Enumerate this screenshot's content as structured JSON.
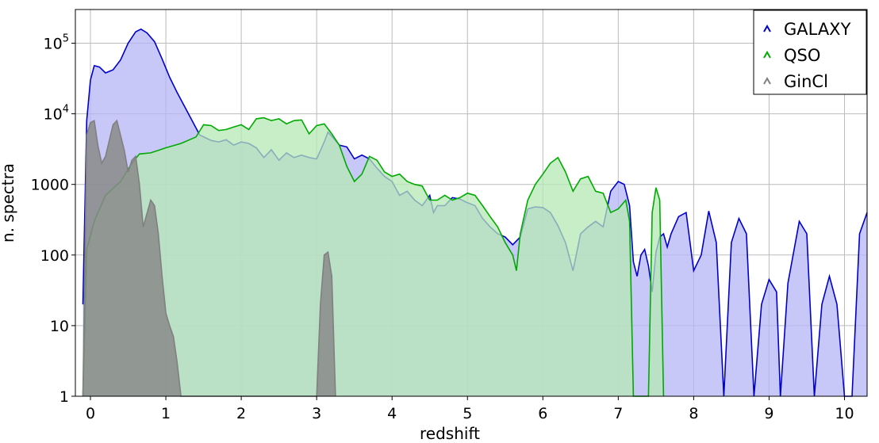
{
  "chart_data": {
    "type": "area",
    "xlabel": "redshift",
    "ylabel": "n. spectra",
    "xlim": [
      -0.2,
      10.3
    ],
    "ylim": [
      1,
      300000
    ],
    "yscale": "log",
    "grid": true,
    "legend_position": "top-right",
    "xticks": [
      0,
      1,
      2,
      3,
      4,
      5,
      6,
      7,
      8,
      9,
      10
    ],
    "xtick_labels": [
      "0",
      "1",
      "2",
      "3",
      "4",
      "5",
      "6",
      "7",
      "8",
      "9",
      "10"
    ],
    "yticks": [
      1,
      10,
      100,
      1000,
      10000,
      100000
    ],
    "ytick_labels": [
      {
        "base": "1",
        "exp": ""
      },
      {
        "base": "10",
        "exp": ""
      },
      {
        "base": "100",
        "exp": ""
      },
      {
        "base": "1000",
        "exp": ""
      },
      {
        "base": "10",
        "exp": "4"
      },
      {
        "base": "10",
        "exp": "5"
      }
    ],
    "series": [
      {
        "name": "GALAXY",
        "color": "#0000cc",
        "fill": "#b5b5f5",
        "points": [
          [
            -0.1,
            20
          ],
          [
            -0.05,
            8000
          ],
          [
            0.0,
            30000
          ],
          [
            0.05,
            48000
          ],
          [
            0.12,
            46000
          ],
          [
            0.2,
            38000
          ],
          [
            0.3,
            42000
          ],
          [
            0.4,
            58000
          ],
          [
            0.5,
            100000
          ],
          [
            0.6,
            145000
          ],
          [
            0.67,
            158000
          ],
          [
            0.75,
            140000
          ],
          [
            0.85,
            105000
          ],
          [
            0.95,
            60000
          ],
          [
            1.05,
            33000
          ],
          [
            1.15,
            20000
          ],
          [
            1.3,
            10000
          ],
          [
            1.45,
            5000
          ],
          [
            1.6,
            4200
          ],
          [
            1.7,
            4000
          ],
          [
            1.8,
            4300
          ],
          [
            1.9,
            3600
          ],
          [
            2.0,
            4000
          ],
          [
            2.1,
            3800
          ],
          [
            2.2,
            3300
          ],
          [
            2.3,
            2400
          ],
          [
            2.4,
            3100
          ],
          [
            2.5,
            2200
          ],
          [
            2.6,
            2800
          ],
          [
            2.7,
            2400
          ],
          [
            2.8,
            2600
          ],
          [
            2.9,
            2400
          ],
          [
            3.0,
            2300
          ],
          [
            3.1,
            4000
          ],
          [
            3.15,
            5500
          ],
          [
            3.2,
            4800
          ],
          [
            3.3,
            3600
          ],
          [
            3.4,
            3400
          ],
          [
            3.5,
            2300
          ],
          [
            3.6,
            2600
          ],
          [
            3.7,
            2300
          ],
          [
            3.8,
            1700
          ],
          [
            3.9,
            1300
          ],
          [
            4.0,
            1100
          ],
          [
            4.1,
            700
          ],
          [
            4.2,
            800
          ],
          [
            4.3,
            600
          ],
          [
            4.4,
            500
          ],
          [
            4.5,
            700
          ],
          [
            4.55,
            400
          ],
          [
            4.6,
            500
          ],
          [
            4.7,
            500
          ],
          [
            4.8,
            650
          ],
          [
            4.9,
            620
          ],
          [
            5.0,
            550
          ],
          [
            5.1,
            500
          ],
          [
            5.2,
            330
          ],
          [
            5.3,
            250
          ],
          [
            5.4,
            200
          ],
          [
            5.5,
            180
          ],
          [
            5.6,
            140
          ],
          [
            5.7,
            180
          ],
          [
            5.8,
            450
          ],
          [
            5.9,
            480
          ],
          [
            6.0,
            470
          ],
          [
            6.1,
            400
          ],
          [
            6.2,
            260
          ],
          [
            6.3,
            150
          ],
          [
            6.4,
            60
          ],
          [
            6.5,
            200
          ],
          [
            6.6,
            250
          ],
          [
            6.7,
            300
          ],
          [
            6.8,
            250
          ],
          [
            6.9,
            800
          ],
          [
            7.0,
            1100
          ],
          [
            7.08,
            1000
          ],
          [
            7.15,
            500
          ],
          [
            7.2,
            80
          ],
          [
            7.25,
            50
          ],
          [
            7.3,
            100
          ],
          [
            7.35,
            120
          ],
          [
            7.4,
            70
          ],
          [
            7.45,
            30
          ],
          [
            7.5,
            110
          ],
          [
            7.55,
            180
          ],
          [
            7.6,
            200
          ],
          [
            7.65,
            130
          ],
          [
            7.7,
            200
          ],
          [
            7.8,
            350
          ],
          [
            7.9,
            400
          ],
          [
            8.0,
            60
          ],
          [
            8.1,
            100
          ],
          [
            8.2,
            420
          ],
          [
            8.3,
            150
          ],
          [
            8.4,
            1
          ],
          [
            8.5,
            150
          ],
          [
            8.6,
            330
          ],
          [
            8.7,
            200
          ],
          [
            8.8,
            1
          ],
          [
            8.9,
            20
          ],
          [
            9.0,
            45
          ],
          [
            9.1,
            30
          ],
          [
            9.15,
            1
          ],
          [
            9.25,
            40
          ],
          [
            9.4,
            300
          ],
          [
            9.5,
            200
          ],
          [
            9.6,
            1
          ],
          [
            9.7,
            20
          ],
          [
            9.8,
            50
          ],
          [
            9.9,
            20
          ],
          [
            10.0,
            1
          ],
          [
            10.1,
            1
          ],
          [
            10.2,
            200
          ],
          [
            10.3,
            400
          ]
        ]
      },
      {
        "name": "QSO",
        "color": "#00aa00",
        "fill": "#b5e8b5",
        "points": [
          [
            -0.1,
            1
          ],
          [
            -0.05,
            120
          ],
          [
            0.05,
            300
          ],
          [
            0.2,
            700
          ],
          [
            0.4,
            1100
          ],
          [
            0.55,
            2000
          ],
          [
            0.65,
            2700
          ],
          [
            0.8,
            2800
          ],
          [
            1.0,
            3300
          ],
          [
            1.2,
            3800
          ],
          [
            1.4,
            4700
          ],
          [
            1.5,
            7000
          ],
          [
            1.6,
            6800
          ],
          [
            1.7,
            5800
          ],
          [
            1.8,
            6000
          ],
          [
            1.9,
            6500
          ],
          [
            2.0,
            7000
          ],
          [
            2.1,
            6000
          ],
          [
            2.2,
            8500
          ],
          [
            2.3,
            8800
          ],
          [
            2.4,
            8000
          ],
          [
            2.5,
            8500
          ],
          [
            2.6,
            7200
          ],
          [
            2.7,
            8000
          ],
          [
            2.8,
            8200
          ],
          [
            2.9,
            5200
          ],
          [
            3.0,
            6800
          ],
          [
            3.1,
            7200
          ],
          [
            3.2,
            5200
          ],
          [
            3.3,
            3600
          ],
          [
            3.4,
            1800
          ],
          [
            3.5,
            1100
          ],
          [
            3.6,
            1400
          ],
          [
            3.7,
            2500
          ],
          [
            3.8,
            2200
          ],
          [
            3.9,
            1500
          ],
          [
            4.0,
            1300
          ],
          [
            4.1,
            1400
          ],
          [
            4.2,
            1100
          ],
          [
            4.3,
            1000
          ],
          [
            4.4,
            950
          ],
          [
            4.5,
            600
          ],
          [
            4.6,
            600
          ],
          [
            4.7,
            700
          ],
          [
            4.8,
            600
          ],
          [
            4.9,
            650
          ],
          [
            5.0,
            750
          ],
          [
            5.1,
            700
          ],
          [
            5.2,
            500
          ],
          [
            5.3,
            350
          ],
          [
            5.4,
            250
          ],
          [
            5.5,
            150
          ],
          [
            5.6,
            100
          ],
          [
            5.65,
            60
          ],
          [
            5.7,
            200
          ],
          [
            5.8,
            600
          ],
          [
            5.9,
            1000
          ],
          [
            6.0,
            1400
          ],
          [
            6.1,
            2000
          ],
          [
            6.2,
            2400
          ],
          [
            6.3,
            1500
          ],
          [
            6.4,
            800
          ],
          [
            6.5,
            1200
          ],
          [
            6.6,
            1300
          ],
          [
            6.7,
            800
          ],
          [
            6.8,
            750
          ],
          [
            6.9,
            400
          ],
          [
            7.0,
            450
          ],
          [
            7.1,
            600
          ],
          [
            7.15,
            300
          ],
          [
            7.2,
            1
          ],
          [
            7.4,
            1
          ],
          [
            7.45,
            400
          ],
          [
            7.5,
            900
          ],
          [
            7.55,
            600
          ],
          [
            7.6,
            1
          ]
        ]
      },
      {
        "name": "GinCl",
        "color": "#808080",
        "fill": "#8a8a8a",
        "points": [
          [
            -0.1,
            1
          ],
          [
            -0.05,
            5000
          ],
          [
            0.0,
            7500
          ],
          [
            0.05,
            8000
          ],
          [
            0.1,
            3500
          ],
          [
            0.15,
            2000
          ],
          [
            0.2,
            2500
          ],
          [
            0.3,
            7000
          ],
          [
            0.35,
            8000
          ],
          [
            0.45,
            3000
          ],
          [
            0.5,
            1500
          ],
          [
            0.55,
            2200
          ],
          [
            0.6,
            2500
          ],
          [
            0.65,
            1000
          ],
          [
            0.7,
            250
          ],
          [
            0.8,
            600
          ],
          [
            0.85,
            500
          ],
          [
            0.9,
            200
          ],
          [
            0.95,
            50
          ],
          [
            1.0,
            15
          ],
          [
            1.05,
            10
          ],
          [
            1.1,
            7
          ],
          [
            1.15,
            3
          ],
          [
            1.2,
            1
          ],
          [
            3.0,
            1
          ],
          [
            3.05,
            20
          ],
          [
            3.1,
            100
          ],
          [
            3.15,
            110
          ],
          [
            3.2,
            50
          ],
          [
            3.25,
            1
          ]
        ]
      }
    ],
    "legend": [
      {
        "label": "GALAXY",
        "color": "#0000cc"
      },
      {
        "label": "QSO",
        "color": "#00aa00"
      },
      {
        "label": "GinCl",
        "color": "#808080"
      }
    ]
  }
}
